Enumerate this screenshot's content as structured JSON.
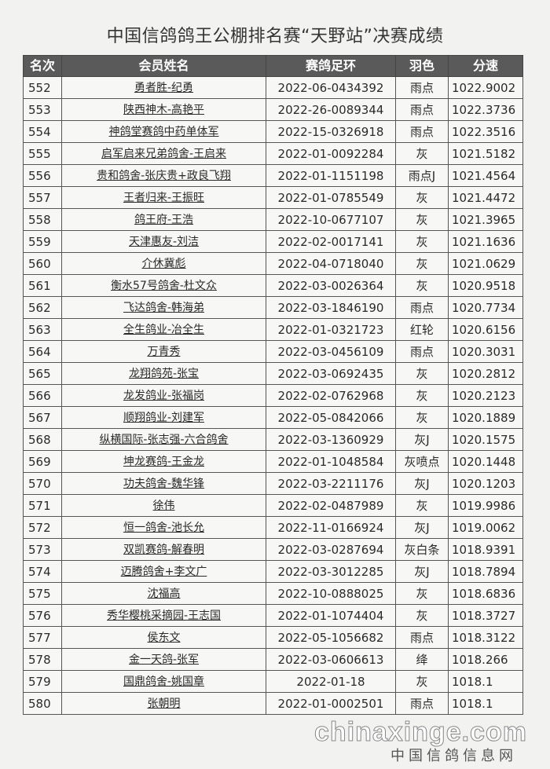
{
  "title": "中国信鸽鸽王公棚排名赛“天野站”决赛成绩",
  "headers": [
    "名次",
    "会员姓名",
    "赛鸽足环",
    "羽色",
    "分速"
  ],
  "rows": [
    [
      "552",
      "勇者胜-纪勇",
      "2022-06-0434392",
      "雨点",
      "1022.9002"
    ],
    [
      "553",
      "陕西神木-高艳平",
      "2022-26-0089344",
      "雨点",
      "1022.3736"
    ],
    [
      "554",
      "神鸽堂赛鸽中药单体军",
      "2022-15-0326918",
      "雨点",
      "1022.3516"
    ],
    [
      "555",
      "启军启来兄弟鸽舍-王启来",
      "2022-01-0092284",
      "灰",
      "1021.5182"
    ],
    [
      "556",
      "贵和鸽舍-张庆贵+政良飞翔",
      "2022-01-1151198",
      "雨点J",
      "1021.4564"
    ],
    [
      "557",
      "王者归来-王振旺",
      "2022-01-0785549",
      "灰",
      "1021.4472"
    ],
    [
      "558",
      "鸽王府-王浩",
      "2022-10-0677107",
      "灰",
      "1021.3965"
    ],
    [
      "559",
      "天津惠友-刘洁",
      "2022-02-0017141",
      "灰",
      "1021.1636"
    ],
    [
      "560",
      "介休冀彪",
      "2022-04-0718040",
      "灰",
      "1021.0629"
    ],
    [
      "561",
      "衡水57号鸽舍-杜文众",
      "2022-03-0026364",
      "灰",
      "1020.9518"
    ],
    [
      "562",
      "飞达鸽舍-韩海弟",
      "2022-03-1846190",
      "雨点",
      "1020.7734"
    ],
    [
      "563",
      "全生鸽业-冶全生",
      "2022-01-0321723",
      "红轮",
      "1020.6156"
    ],
    [
      "564",
      "万青秀",
      "2022-03-0456109",
      "雨点",
      "1020.3031"
    ],
    [
      "565",
      "龙翔鸽苑-张宝",
      "2022-03-0692435",
      "灰",
      "1020.2812"
    ],
    [
      "566",
      "龙发鸽业-张福岗",
      "2022-02-0762968",
      "灰",
      "1020.2123"
    ],
    [
      "567",
      "顺翔鸽业-刘建军",
      "2022-05-0842066",
      "灰",
      "1020.1889"
    ],
    [
      "568",
      "纵横国际-张志强-六合鸽舍",
      "2022-03-1360929",
      "灰J",
      "1020.1575"
    ],
    [
      "569",
      "坤龙赛鸽-王金龙",
      "2022-01-1048584",
      "灰喷点",
      "1020.1448"
    ],
    [
      "570",
      "功夫鸽舍-魏华锋",
      "2022-03-2211176",
      "灰J",
      "1020.1203"
    ],
    [
      "571",
      "徐伟",
      "2022-02-0487989",
      "灰",
      "1019.9986"
    ],
    [
      "572",
      "恒一鸽舍-池长允",
      "2022-11-0166924",
      "灰J",
      "1019.0062"
    ],
    [
      "573",
      "双凯赛鸽-解春明",
      "2022-03-0287694",
      "灰白条",
      "1018.9391"
    ],
    [
      "574",
      "迈腾鸽舍+李文广",
      "2022-03-3012285",
      "灰J",
      "1018.7894"
    ],
    [
      "575",
      "沈福高",
      "2022-10-0888025",
      "灰",
      "1018.6836"
    ],
    [
      "576",
      "秀华樱桃采摘园-王志国",
      "2022-01-1074404",
      "灰",
      "1018.3727"
    ],
    [
      "577",
      "侯东文",
      "2022-05-1056682",
      "雨点",
      "1018.3122"
    ],
    [
      "578",
      "金一天鸽-张军",
      "2022-03-0606613",
      "绛",
      "1018.266"
    ],
    [
      "579",
      "国鼎鸽舍-姚国章",
      "2022-01-18",
      "灰",
      "1018.1"
    ],
    [
      "580",
      "张朝明",
      "2022-01-0002501",
      "雨点",
      "1018.1"
    ]
  ],
  "watermark": {
    "latin": "chinaxinge.com",
    "chinese": "中国信鸽信息网"
  }
}
